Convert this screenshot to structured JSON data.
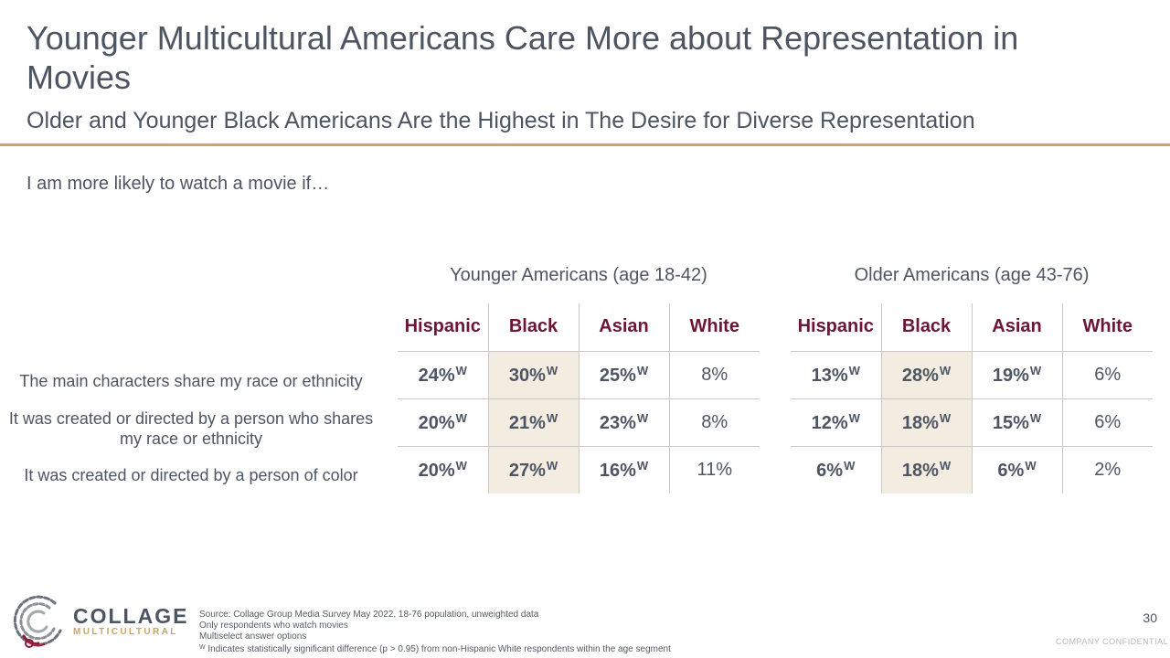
{
  "title": "Younger Multicultural Americans Care More about Representation in Movies",
  "subtitle": "Older and Younger Black Americans Are the Highest in The Desire for Diverse Representation",
  "prompt": "I am more likely to watch a movie if…",
  "columns": [
    "Hispanic",
    "Black",
    "Asian",
    "White"
  ],
  "row_labels": [
    "The main characters share my race or ethnicity",
    "It was created or directed by a person who shares my race or ethnicity",
    "It was created or directed by a person of color"
  ],
  "groups": [
    {
      "title": "Younger Americans (age 18-42)",
      "rows": [
        [
          {
            "v": "24%",
            "sig": "W"
          },
          {
            "v": "30%",
            "sig": "W"
          },
          {
            "v": "25%",
            "sig": "W"
          },
          {
            "v": "8%",
            "sig": ""
          }
        ],
        [
          {
            "v": "20%",
            "sig": "W"
          },
          {
            "v": "21%",
            "sig": "W"
          },
          {
            "v": "23%",
            "sig": "W"
          },
          {
            "v": "8%",
            "sig": ""
          }
        ],
        [
          {
            "v": "20%",
            "sig": "W"
          },
          {
            "v": "27%",
            "sig": "W"
          },
          {
            "v": "16%",
            "sig": "W"
          },
          {
            "v": "11%",
            "sig": ""
          }
        ]
      ]
    },
    {
      "title": "Older Americans (age 43-76)",
      "rows": [
        [
          {
            "v": "13%",
            "sig": "W"
          },
          {
            "v": "28%",
            "sig": "W"
          },
          {
            "v": "19%",
            "sig": "W"
          },
          {
            "v": "6%",
            "sig": ""
          }
        ],
        [
          {
            "v": "12%",
            "sig": "W"
          },
          {
            "v": "18%",
            "sig": "W"
          },
          {
            "v": "15%",
            "sig": "W"
          },
          {
            "v": "6%",
            "sig": ""
          }
        ],
        [
          {
            "v": "6%",
            "sig": "W"
          },
          {
            "v": "18%",
            "sig": "W"
          },
          {
            "v": "6%",
            "sig": "W"
          },
          {
            "v": "2%",
            "sig": ""
          }
        ]
      ]
    }
  ],
  "logo": {
    "line1": "COLLAGE",
    "line2": "MULTICULTURAL"
  },
  "footnotes": {
    "source": "Source: Collage Group Media Survey May 2022, 18-76 population, unweighted data",
    "note1": "Only respondents who watch movies",
    "note2": "Multiselect answer options",
    "sig_marker": "W",
    "sig_note": "Indicates statistically significant difference (p > 0.95) from non-Hispanic White respondents within the age segment"
  },
  "page_number": "30",
  "confidential": "COMPANY CONFIDENTIAL",
  "colors": {
    "accent_gold": "#c5a865",
    "header_maroon": "#6c1535",
    "highlight": "#f3ece0",
    "text": "#4d5563"
  }
}
